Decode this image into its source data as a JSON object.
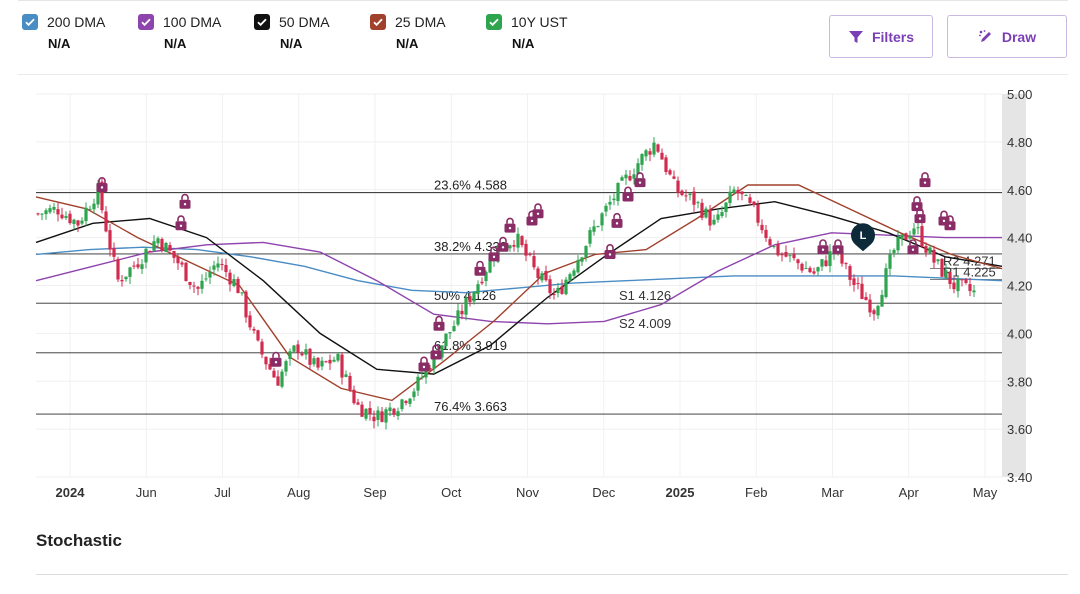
{
  "legend": [
    {
      "label": "200 DMA",
      "value": "N/A",
      "color": "#4a8cc4"
    },
    {
      "label": "100 DMA",
      "value": "N/A",
      "color": "#8e44ad"
    },
    {
      "label": "50 DMA",
      "value": "N/A",
      "color": "#111111"
    },
    {
      "label": "25 DMA",
      "value": "N/A",
      "color": "#a0412d"
    },
    {
      "label": "10Y UST",
      "value": "N/A",
      "color": "#2ea44f"
    }
  ],
  "toolbar": {
    "filters_label": "Filters",
    "draw_label": "Draw",
    "accent": "#7b3fb5"
  },
  "stochastic_label": "Stochastic",
  "chart_data": {
    "type": "candlestick",
    "ylim": [
      3.4,
      5.0
    ],
    "y_ticks": [
      "5.00",
      "4.80",
      "4.60",
      "4.40",
      "4.20",
      "4.00",
      "3.80",
      "3.60",
      "3.40"
    ],
    "x_ticks": [
      {
        "label": "2024",
        "bold": true
      },
      {
        "label": "Jun",
        "bold": false
      },
      {
        "label": "Jul",
        "bold": false
      },
      {
        "label": "Aug",
        "bold": false
      },
      {
        "label": "Sep",
        "bold": false
      },
      {
        "label": "Oct",
        "bold": false
      },
      {
        "label": "Nov",
        "bold": false
      },
      {
        "label": "Dec",
        "bold": false
      },
      {
        "label": "2025",
        "bold": true
      },
      {
        "label": "Feb",
        "bold": false
      },
      {
        "label": "Mar",
        "bold": false
      },
      {
        "label": "Apr",
        "bold": false
      },
      {
        "label": "May",
        "bold": false
      }
    ],
    "colors": {
      "up": "#2ea44f",
      "down": "#d12b4f",
      "lock": "#8a2c66",
      "marker": "#0c2a3a"
    },
    "close_path": [
      4.5,
      4.52,
      4.46,
      4.6,
      4.22,
      4.3,
      4.4,
      4.3,
      4.18,
      4.3,
      4.2,
      3.95,
      3.8,
      3.95,
      3.85,
      3.9,
      3.7,
      3.65,
      3.7,
      3.78,
      3.92,
      4.05,
      4.2,
      4.35,
      4.4,
      4.25,
      4.15,
      4.3,
      4.45,
      4.58,
      4.7,
      4.8,
      4.6,
      4.55,
      4.45,
      4.6,
      4.5,
      4.35,
      4.3,
      4.25,
      4.35,
      4.2,
      4.1,
      4.35,
      4.45,
      4.3,
      4.2,
      4.17
    ],
    "ma_200": [
      4.33,
      4.35,
      4.36,
      4.35,
      4.32,
      4.28,
      4.22,
      4.18,
      4.17,
      4.19,
      4.21,
      4.22,
      4.23,
      4.24,
      4.24,
      4.24,
      4.24,
      4.23,
      4.22
    ],
    "ma_100": [
      4.22,
      4.28,
      4.34,
      4.37,
      4.38,
      4.34,
      4.22,
      4.08,
      4.05,
      4.04,
      4.05,
      4.12,
      4.26,
      4.37,
      4.42,
      4.41,
      4.4,
      4.4
    ],
    "ma_50": [
      4.38,
      4.46,
      4.48,
      4.4,
      4.22,
      4.0,
      3.85,
      3.83,
      3.95,
      4.15,
      4.32,
      4.48,
      4.52,
      4.55,
      4.49,
      4.42,
      4.32,
      4.28
    ],
    "ma_25": [
      4.57,
      4.52,
      4.4,
      4.3,
      4.2,
      3.9,
      3.77,
      3.72,
      3.88,
      4.05,
      4.25,
      4.33,
      4.35,
      4.48,
      4.62,
      4.62,
      4.52,
      4.42,
      4.33,
      4.27
    ],
    "levels": [
      {
        "label": "23.6% 4.588",
        "value": 4.588
      },
      {
        "label": "38.2% 4.332",
        "value": 4.332
      },
      {
        "label": "50% 4.126",
        "value": 4.126
      },
      {
        "label": "61.8% 3.919",
        "value": 3.919
      },
      {
        "label": "76.4% 3.663",
        "value": 3.663
      }
    ],
    "pivots": [
      {
        "label": "S1 4.126",
        "value": 4.126
      },
      {
        "label": "S2 4.009",
        "value": 4.009
      },
      {
        "label": "R2 4.271",
        "value": 4.271
      },
      {
        "label": "R1 4.225",
        "value": 4.225
      }
    ],
    "marker_label": "L"
  }
}
